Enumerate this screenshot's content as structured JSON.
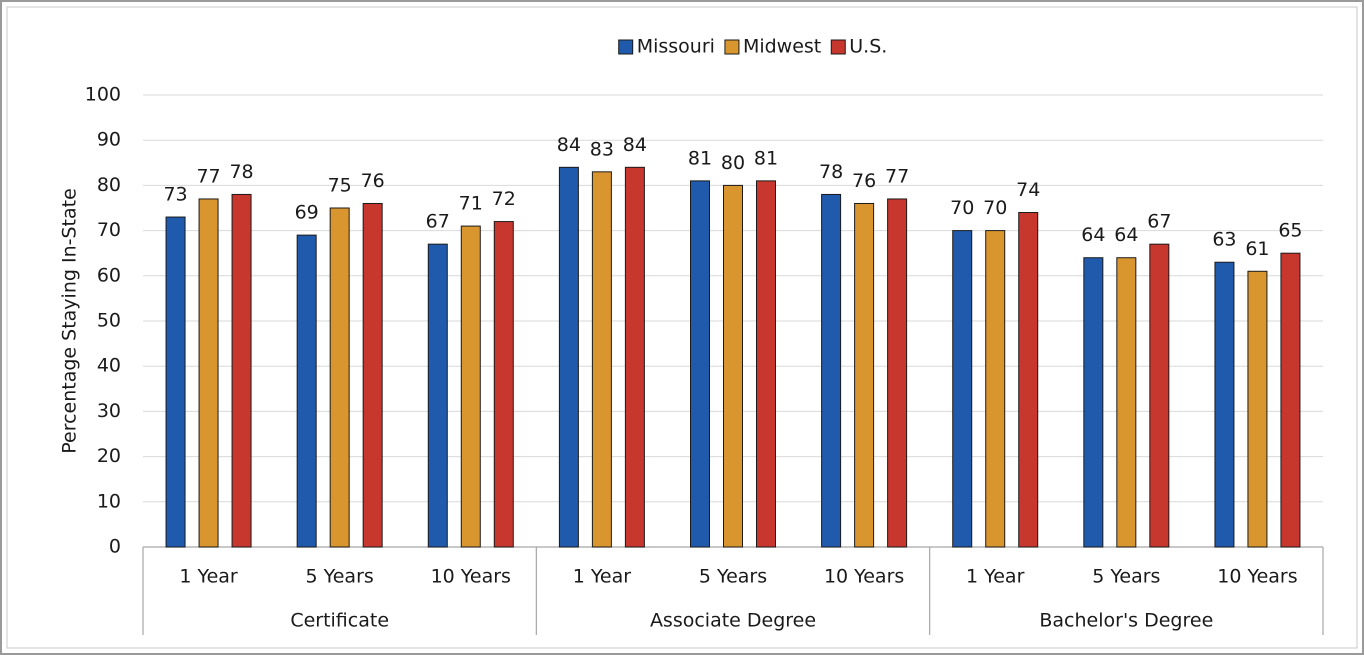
{
  "chart_data": {
    "type": "bar",
    "ylabel": "Percentage Staying In-State",
    "categories": [
      "1 Year",
      "5 Years",
      "10 Years",
      "1 Year",
      "5 Years",
      "10 Years",
      "1 Year",
      "5 Years",
      "10 Years"
    ],
    "category_groups": [
      "Certificate",
      "Associate Degree",
      "Bachelor's Degree"
    ],
    "series": [
      {
        "name": "Missouri",
        "color": "#1f5aad",
        "values": [
          73,
          69,
          67,
          84,
          81,
          78,
          70,
          64,
          63
        ]
      },
      {
        "name": "Midwest",
        "color": "#d9962e",
        "values": [
          77,
          75,
          71,
          83,
          80,
          76,
          70,
          64,
          61
        ]
      },
      {
        "name": "U.S.",
        "color": "#c8372d",
        "values": [
          78,
          76,
          72,
          84,
          81,
          77,
          74,
          67,
          65
        ]
      }
    ],
    "ylim": [
      0,
      100
    ],
    "yticks": [
      0,
      10,
      20,
      30,
      40,
      50,
      60,
      70,
      80,
      90,
      100
    ],
    "grid": true,
    "legend": "top"
  }
}
